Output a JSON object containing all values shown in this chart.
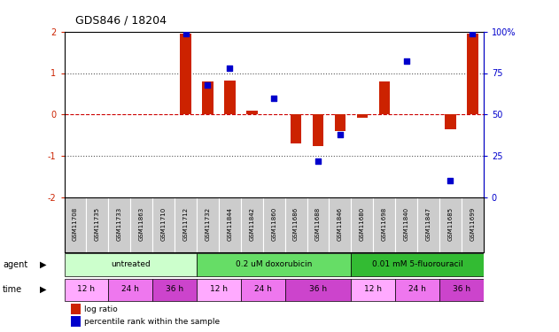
{
  "title": "GDS846 / 18204",
  "samples": [
    "GSM11708",
    "GSM11735",
    "GSM11733",
    "GSM11863",
    "GSM11710",
    "GSM11712",
    "GSM11732",
    "GSM11844",
    "GSM11842",
    "GSM11860",
    "GSM11686",
    "GSM11688",
    "GSM11846",
    "GSM11680",
    "GSM11698",
    "GSM11840",
    "GSM11847",
    "GSM11685",
    "GSM11699"
  ],
  "log_ratio": [
    0,
    0,
    0,
    0,
    0,
    1.95,
    0.8,
    0.82,
    0.1,
    0,
    -0.7,
    -0.75,
    -0.4,
    -0.08,
    0.8,
    0,
    0,
    -0.35,
    1.95
  ],
  "percentile_rank": [
    null,
    null,
    null,
    null,
    null,
    99,
    68,
    78,
    null,
    60,
    null,
    22,
    38,
    null,
    null,
    82,
    null,
    10,
    99
  ],
  "agents": [
    {
      "label": "untreated",
      "start": 0,
      "end": 6,
      "color": "#ccffcc"
    },
    {
      "label": "0.2 uM doxorubicin",
      "start": 6,
      "end": 13,
      "color": "#66dd66"
    },
    {
      "label": "0.01 mM 5-fluorouracil",
      "start": 13,
      "end": 19,
      "color": "#33bb33"
    }
  ],
  "times": [
    {
      "label": "12 h",
      "start": 0,
      "end": 2,
      "color": "#ffaaff"
    },
    {
      "label": "24 h",
      "start": 2,
      "end": 4,
      "color": "#ee77ee"
    },
    {
      "label": "36 h",
      "start": 4,
      "end": 6,
      "color": "#cc44cc"
    },
    {
      "label": "12 h",
      "start": 6,
      "end": 8,
      "color": "#ffaaff"
    },
    {
      "label": "24 h",
      "start": 8,
      "end": 10,
      "color": "#ee77ee"
    },
    {
      "label": "36 h",
      "start": 10,
      "end": 13,
      "color": "#cc44cc"
    },
    {
      "label": "12 h",
      "start": 13,
      "end": 15,
      "color": "#ffaaff"
    },
    {
      "label": "24 h",
      "start": 15,
      "end": 17,
      "color": "#ee77ee"
    },
    {
      "label": "36 h",
      "start": 17,
      "end": 19,
      "color": "#cc44cc"
    }
  ],
  "bar_color": "#cc2200",
  "dot_color": "#0000cc",
  "ylim_left": [
    -2,
    2
  ],
  "ylim_right": [
    0,
    100
  ],
  "yticks_left": [
    -2,
    -1,
    0,
    1,
    2
  ],
  "yticks_right": [
    0,
    25,
    50,
    75,
    100
  ],
  "ytick_labels_right": [
    "0",
    "25",
    "50",
    "75",
    "100%"
  ],
  "hline_y": [
    0,
    1,
    -1
  ],
  "hline_colors": [
    "#cc0000",
    "#555555",
    "#555555"
  ],
  "hline_styles": [
    "--",
    ":",
    ":"
  ],
  "background_color": "#ffffff",
  "sample_bg_color": "#cccccc"
}
